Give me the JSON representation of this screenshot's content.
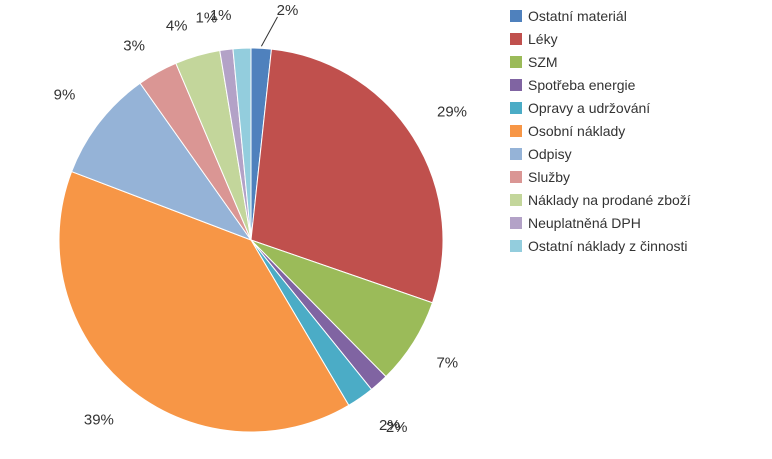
{
  "chart_data": {
    "type": "pie",
    "categories": [
      "Ostatní materiál",
      "Léky",
      "SZM",
      "Spotřeba energie",
      "Opravy a udržování",
      "Osobní náklady",
      "Odpisy",
      "Služby",
      "Náklady na prodané zboží",
      "Neuplatněná DPH",
      "Ostatní náklady z činnosti"
    ],
    "values": [
      1.7,
      28.6,
      7.3,
      1.6,
      2.3,
      39.3,
      9.4,
      3.4,
      3.8,
      1.1,
      1.5
    ],
    "data_labels": [
      "2%",
      "29%",
      "7%",
      "2%",
      "2%",
      "39%",
      "9%",
      "3%",
      "4%",
      "1%",
      "1%"
    ],
    "colors": [
      "#4f81bd",
      "#c0504d",
      "#9bbb59",
      "#8064a2",
      "#4bacc6",
      "#f79646",
      "#95b3d7",
      "#da9694",
      "#c3d69b",
      "#b3a2c7",
      "#93cddd"
    ],
    "start_angle": "12 o'clock",
    "direction": "clockwise",
    "legend_position": "right",
    "title": ""
  }
}
